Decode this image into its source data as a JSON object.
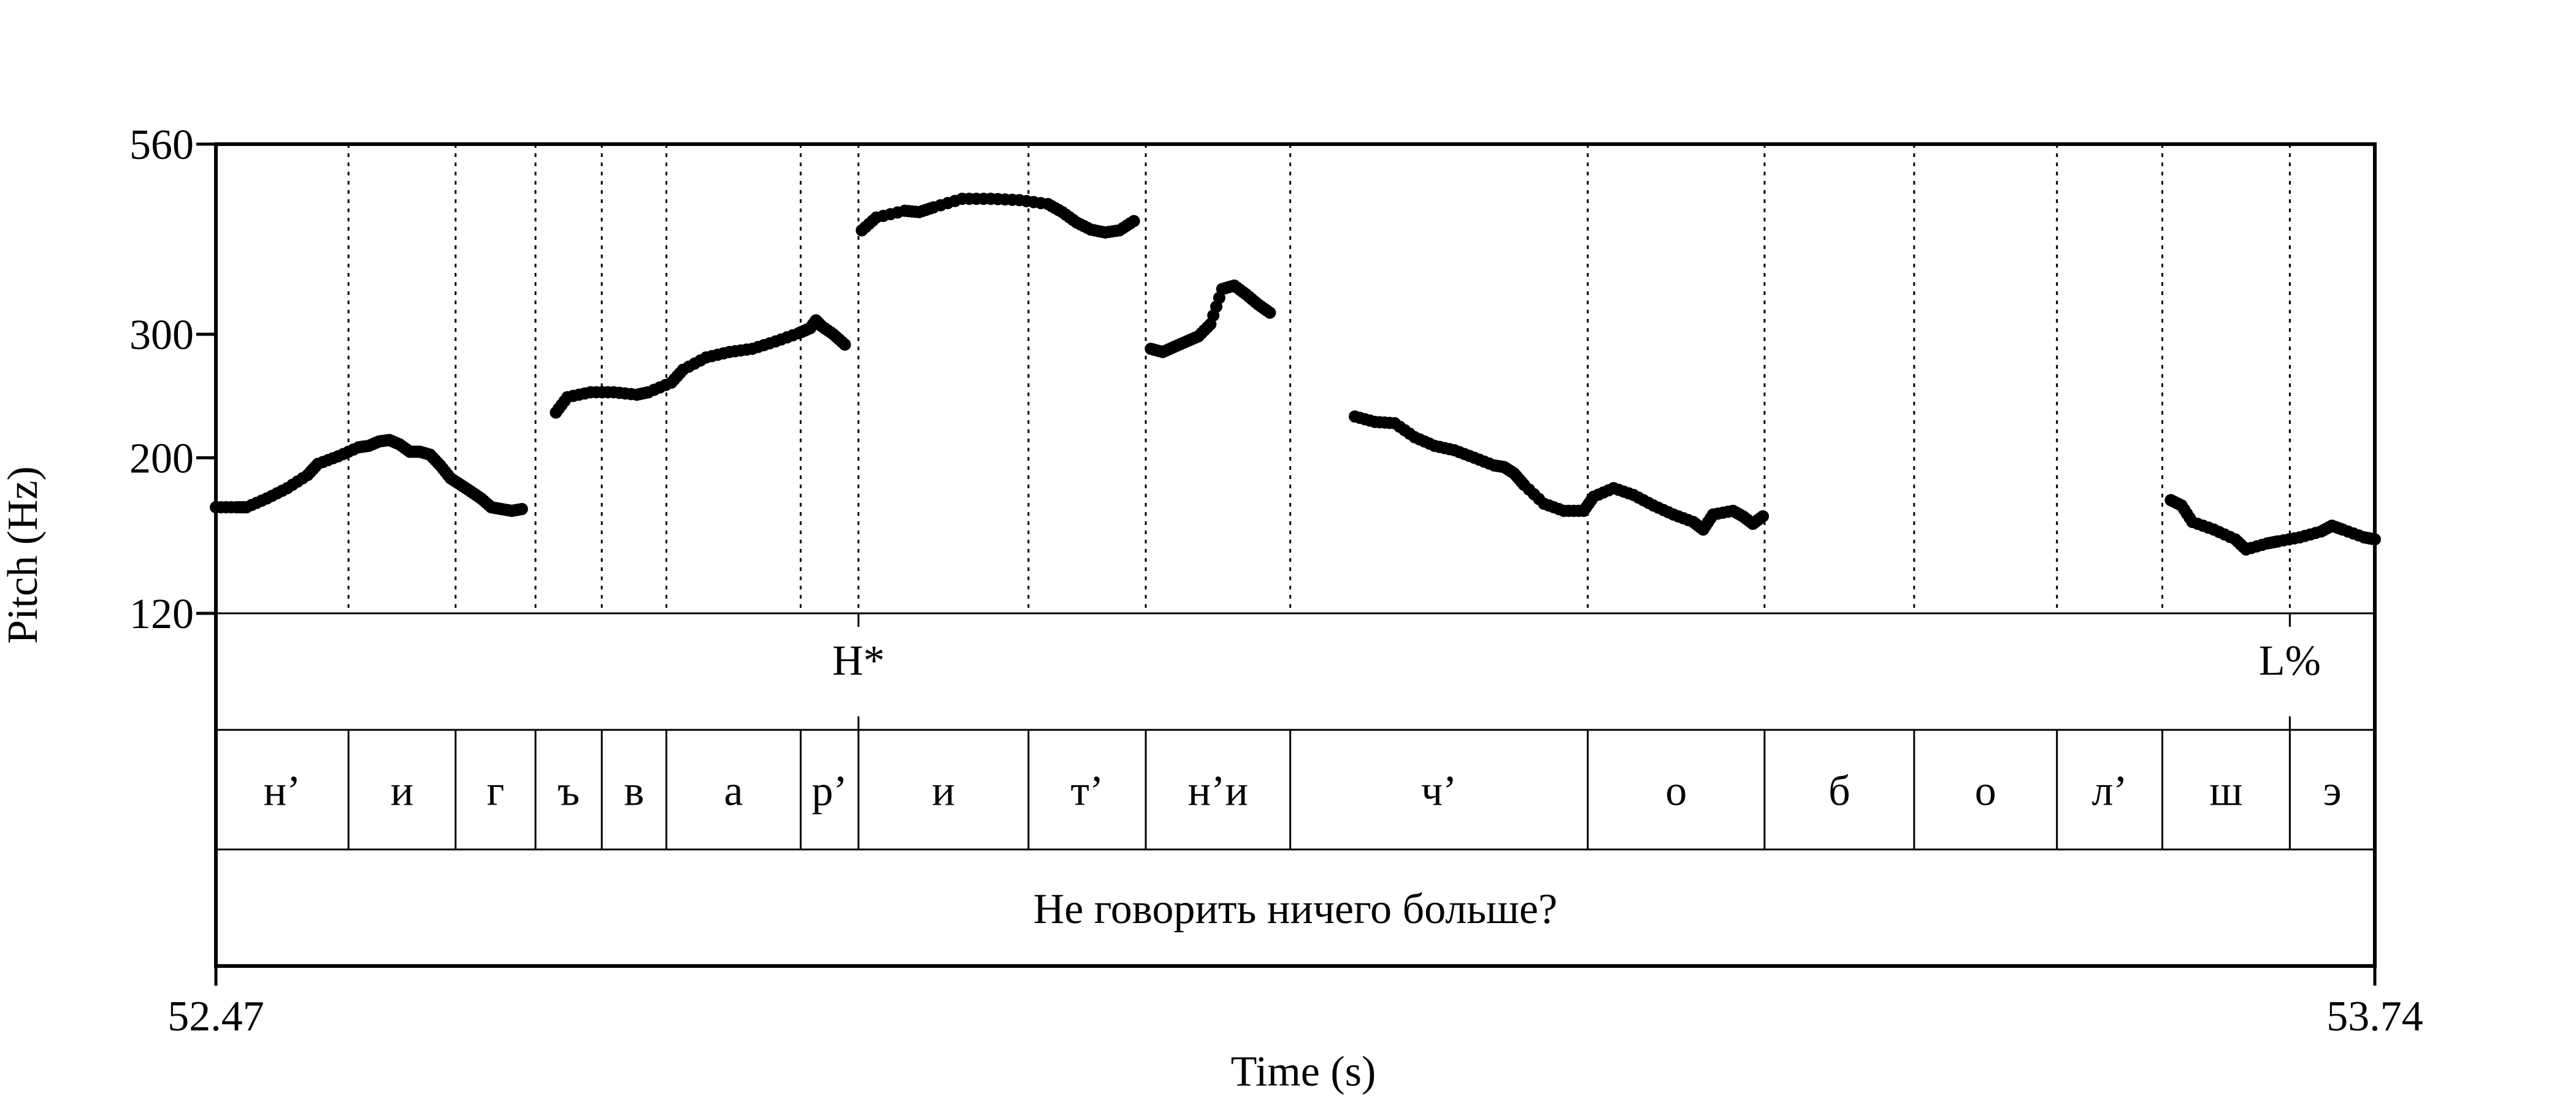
{
  "chart_data": {
    "type": "scatter",
    "xlabel": "Time (s)",
    "ylabel": "Pitch (Hz)",
    "xlim": [
      52.47,
      53.74
    ],
    "ylim": [
      120,
      560
    ],
    "y_scale": "log",
    "x_tick_labels": [
      "52.47",
      "53.74"
    ],
    "y_ticks": [
      {
        "value": 120,
        "label": "120"
      },
      {
        "value": 200,
        "label": "200"
      },
      {
        "value": 300,
        "label": "300"
      },
      {
        "value": 560,
        "label": "560"
      }
    ],
    "point_color": "#000000",
    "pitch_contour": [
      {
        "from": 52.47,
        "to": 52.65,
        "points": [
          [
            52.47,
            170
          ],
          [
            52.49,
            170
          ],
          [
            52.5,
            170
          ],
          [
            52.52,
            175
          ],
          [
            52.54,
            181
          ],
          [
            52.56,
            189
          ],
          [
            52.57,
            196
          ],
          [
            52.59,
            201
          ],
          [
            52.61,
            207
          ],
          [
            52.62,
            208
          ],
          [
            52.63,
            211
          ],
          [
            52.64,
            212
          ],
          [
            52.65,
            209
          ],
          [
            52.66,
            204
          ],
          [
            52.67,
            204
          ],
          [
            52.68,
            202
          ],
          [
            52.69,
            195
          ],
          [
            52.7,
            187
          ],
          [
            52.71,
            183
          ],
          [
            52.72,
            179
          ],
          [
            52.73,
            175
          ],
          [
            52.74,
            170
          ],
          [
            52.75,
            169
          ],
          [
            52.76,
            168
          ],
          [
            52.77,
            169
          ]
        ]
      },
      {
        "from": 52.67,
        "to": 52.84,
        "points": [
          [
            52.67,
            232
          ],
          [
            52.68,
            244
          ],
          [
            52.7,
            248
          ],
          [
            52.72,
            248
          ],
          [
            52.74,
            246
          ],
          [
            52.75,
            248
          ],
          [
            52.77,
            256
          ],
          [
            52.78,
            267
          ],
          [
            52.8,
            278
          ],
          [
            52.82,
            283
          ],
          [
            52.84,
            286
          ],
          [
            52.86,
            293
          ],
          [
            52.88,
            301
          ],
          [
            52.89,
            306
          ],
          [
            52.895,
            314
          ],
          [
            52.9,
            308
          ],
          [
            52.91,
            300
          ],
          [
            52.92,
            290
          ]
        ]
      },
      {
        "from": 52.85,
        "to": 53.01,
        "points": [
          [
            52.85,
            422
          ],
          [
            52.86,
            440
          ],
          [
            52.88,
            450
          ],
          [
            52.89,
            448
          ],
          [
            52.9,
            455
          ],
          [
            52.92,
            468
          ],
          [
            52.94,
            468
          ],
          [
            52.96,
            466
          ],
          [
            52.98,
            460
          ],
          [
            52.99,
            448
          ],
          [
            53.0,
            433
          ],
          [
            53.01,
            423
          ],
          [
            53.02,
            419
          ],
          [
            53.03,
            422
          ],
          [
            53.04,
            435
          ]
        ]
      },
      {
        "from": 53.02,
        "to": 53.09,
        "points": [
          [
            53.03,
            286
          ],
          [
            53.04,
            283
          ],
          [
            53.05,
            288
          ],
          [
            53.06,
            293
          ],
          [
            53.07,
            298
          ],
          [
            53.08,
            310
          ],
          [
            53.09,
            348
          ],
          [
            53.1,
            352
          ],
          [
            53.11,
            342
          ],
          [
            53.12,
            331
          ],
          [
            53.13,
            322
          ]
        ]
      },
      {
        "from": 53.14,
        "to": 53.38,
        "points": [
          [
            53.14,
            229
          ],
          [
            53.16,
            225
          ],
          [
            53.18,
            224
          ],
          [
            53.2,
            214
          ],
          [
            53.22,
            208
          ],
          [
            53.24,
            205
          ],
          [
            53.26,
            200
          ],
          [
            53.28,
            195
          ],
          [
            53.29,
            194
          ],
          [
            53.3,
            190
          ],
          [
            53.31,
            183
          ],
          [
            53.33,
            172
          ],
          [
            53.35,
            168
          ],
          [
            53.37,
            168
          ],
          [
            53.38,
            176
          ],
          [
            53.4,
            181
          ],
          [
            53.42,
            177
          ],
          [
            53.44,
            171
          ],
          [
            53.46,
            166
          ],
          [
            53.48,
            162
          ],
          [
            53.49,
            158
          ],
          [
            53.5,
            166
          ],
          [
            53.52,
            168
          ],
          [
            53.53,
            165
          ],
          [
            53.54,
            161
          ],
          [
            53.55,
            165
          ]
        ]
      },
      {
        "from": 53.62,
        "to": 53.74,
        "points": [
          [
            53.62,
            174
          ],
          [
            53.63,
            171
          ],
          [
            53.64,
            162
          ],
          [
            53.66,
            158
          ],
          [
            53.68,
            153
          ],
          [
            53.69,
            148
          ],
          [
            53.71,
            151
          ],
          [
            53.72,
            152
          ],
          [
            53.74,
            154
          ],
          [
            53.76,
            157
          ],
          [
            53.77,
            160
          ],
          [
            53.78,
            158
          ],
          [
            53.8,
            154
          ],
          [
            53.81,
            153
          ]
        ]
      }
    ],
    "guide_lines_x": [
      52.548,
      52.611,
      52.658,
      52.697,
      52.735,
      52.814,
      52.848,
      52.948,
      53.017,
      53.102,
      53.277,
      53.381,
      53.469,
      53.553,
      53.615,
      53.69
    ],
    "tiers": [
      {
        "name": "tones",
        "intervals": [
          {
            "start": 52.47,
            "end": 52.848,
            "label": ""
          },
          {
            "start": 52.848,
            "end": 53.69,
            "label": "H*"
          },
          {
            "start": 53.69,
            "end": 53.74,
            "label": "L%"
          }
        ]
      },
      {
        "name": "segments",
        "intervals": [
          {
            "start": 52.47,
            "end": 52.548,
            "label": "н’"
          },
          {
            "start": 52.548,
            "end": 52.611,
            "label": "и"
          },
          {
            "start": 52.611,
            "end": 52.658,
            "label": "г"
          },
          {
            "start": 52.658,
            "end": 52.697,
            "label": "ъ"
          },
          {
            "start": 52.697,
            "end": 52.735,
            "label": "в"
          },
          {
            "start": 52.735,
            "end": 52.814,
            "label": "а"
          },
          {
            "start": 52.814,
            "end": 52.848,
            "label": "р’"
          },
          {
            "start": 52.848,
            "end": 52.948,
            "label": "и"
          },
          {
            "start": 52.948,
            "end": 53.017,
            "label": "т’"
          },
          {
            "start": 53.017,
            "end": 53.102,
            "label": "н’и"
          },
          {
            "start": 53.102,
            "end": 53.277,
            "label": "ч’"
          },
          {
            "start": 53.277,
            "end": 53.381,
            "label": "о"
          },
          {
            "start": 53.381,
            "end": 53.469,
            "label": "б"
          },
          {
            "start": 53.469,
            "end": 53.553,
            "label": "о"
          },
          {
            "start": 53.553,
            "end": 53.615,
            "label": "л’"
          },
          {
            "start": 53.615,
            "end": 53.69,
            "label": "ш"
          },
          {
            "start": 53.69,
            "end": 53.74,
            "label": "э"
          }
        ]
      },
      {
        "name": "utterance",
        "intervals": [
          {
            "start": 52.47,
            "end": 53.74,
            "label": "Не говорить ничего больше?"
          }
        ]
      }
    ]
  }
}
